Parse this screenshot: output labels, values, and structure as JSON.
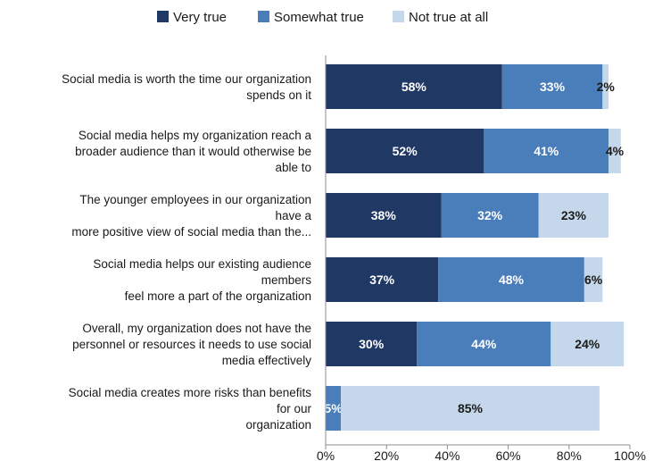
{
  "chart_data": {
    "type": "bar",
    "orientation": "horizontal",
    "stacked": true,
    "title": "",
    "xlabel": "",
    "ylabel": "",
    "xlim": [
      0,
      100
    ],
    "x_ticks": [
      "0%",
      "20%",
      "40%",
      "60%",
      "80%",
      "100%"
    ],
    "x_tick_values": [
      0,
      20,
      40,
      60,
      80,
      100
    ],
    "legend_position": "top",
    "grid": false,
    "categories": [
      [
        "Social media is worth the time our organization",
        "spends on it"
      ],
      [
        "Social media helps my organization reach a",
        "broader audience than it would otherwise be",
        "able to"
      ],
      [
        "The younger employees in our organization",
        "have a",
        "more positive view of social media than the..."
      ],
      [
        "Social media helps our existing audience",
        "members",
        "feel more a part of the organization"
      ],
      [
        "Overall, my organization does not have the",
        "personnel or resources it needs to use social",
        "media effectively"
      ],
      [
        "Social media creates more risks than benefits",
        "for our",
        "organization"
      ]
    ],
    "series": [
      {
        "name": "Very true",
        "color": "#1f3864",
        "label_color": "#ffffff",
        "values": [
          58,
          52,
          38,
          37,
          30,
          0
        ],
        "labels": [
          "58%",
          "52%",
          "38%",
          "37%",
          "30%",
          ""
        ]
      },
      {
        "name": "Somewhat true",
        "color": "#4a7ebb",
        "label_color": "#ffffff",
        "values": [
          33,
          41,
          32,
          48,
          44,
          5
        ],
        "labels": [
          "33%",
          "41%",
          "32%",
          "48%",
          "44%",
          "5%"
        ]
      },
      {
        "name": "Not true at all",
        "color": "#c5d7ea",
        "label_color": "#1a1a1a",
        "values": [
          2,
          4,
          23,
          6,
          24,
          85
        ],
        "labels": [
          "2%",
          "4%",
          "23%",
          "6%",
          "24%",
          "85%"
        ]
      }
    ]
  }
}
